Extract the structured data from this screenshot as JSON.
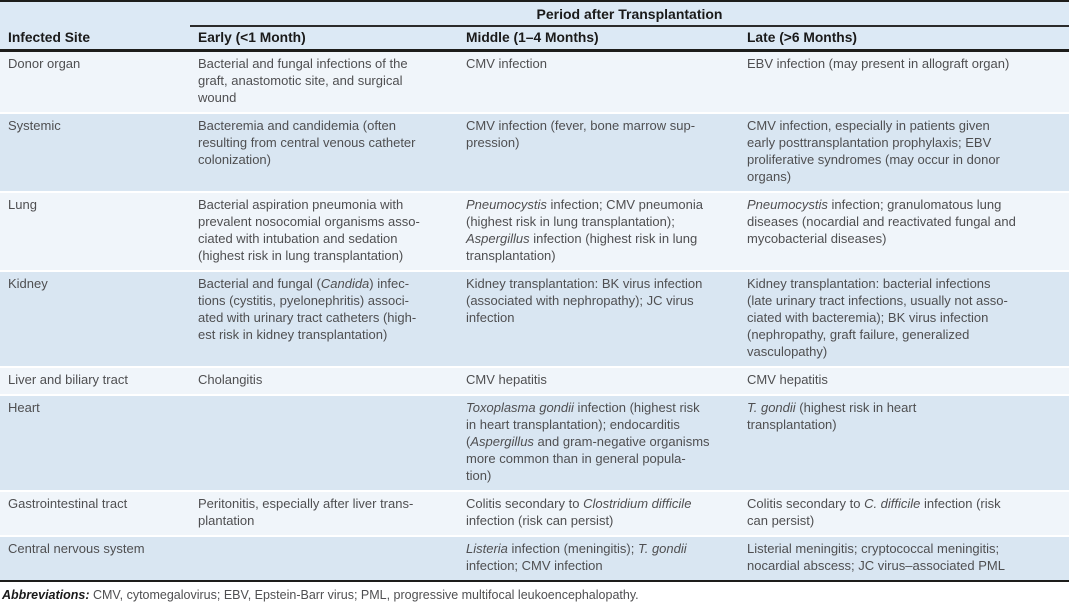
{
  "table": {
    "span_header": "Period after Transplantation",
    "columns": [
      "Infected Site",
      "Early (<1 Month)",
      "Middle (1–4 Months)",
      "Late (>6 Months)"
    ],
    "rows": [
      {
        "site": "Donor organ",
        "early": [
          {
            "t": "Bacterial and fungal infections of the\ngraft, anastomotic site, and surgical\nwound"
          }
        ],
        "middle": [
          {
            "t": "CMV infection"
          }
        ],
        "late": [
          {
            "t": "EBV infection (may present in allograft organ)"
          }
        ]
      },
      {
        "site": "Systemic",
        "early": [
          {
            "t": "Bacteremia and candidemia (often\nresulting from central venous catheter\ncolonization)"
          }
        ],
        "middle": [
          {
            "t": "CMV infection (fever, bone marrow sup-\npression)"
          }
        ],
        "late": [
          {
            "t": "CMV infection, especially in patients given\nearly posttransplantation prophylaxis; EBV\nproliferative syndromes (may occur in donor\norgans)"
          }
        ]
      },
      {
        "site": "Lung",
        "early": [
          {
            "t": "Bacterial aspiration pneumonia with\nprevalent nosocomial organisms asso-\nciated with intubation and sedation\n(highest risk in lung transplantation)"
          }
        ],
        "middle": [
          {
            "t": "Pneumocystis",
            "i": true
          },
          {
            "t": " infection; CMV pneumonia\n(highest risk in lung transplantation);\n"
          },
          {
            "t": "Aspergillus",
            "i": true
          },
          {
            "t": " infection (highest risk in lung\ntransplantation)"
          }
        ],
        "late": [
          {
            "t": "Pneumocystis",
            "i": true
          },
          {
            "t": " infection; granulomatous lung\ndiseases (nocardial and reactivated fungal and\nmycobacterial diseases)"
          }
        ]
      },
      {
        "site": "Kidney",
        "early": [
          {
            "t": "Bacterial and fungal ("
          },
          {
            "t": "Candida",
            "i": true
          },
          {
            "t": ") infec-\ntions (cystitis, pyelonephritis) associ-\nated with urinary tract catheters (high-\nest risk in kidney transplantation)"
          }
        ],
        "middle": [
          {
            "t": "Kidney transplantation: BK virus infection\n(associated with nephropathy); JC virus\ninfection"
          }
        ],
        "late": [
          {
            "t": "Kidney transplantation: bacterial infections\n(late urinary tract infections, usually not asso-\nciated with bacteremia); BK virus infection\n(nephropathy, graft failure, generalized\nvasculopathy)"
          }
        ]
      },
      {
        "site": "Liver and biliary tract",
        "early": [
          {
            "t": "Cholangitis"
          }
        ],
        "middle": [
          {
            "t": "CMV hepatitis"
          }
        ],
        "late": [
          {
            "t": "CMV hepatitis"
          }
        ]
      },
      {
        "site": "Heart",
        "early": [],
        "middle": [
          {
            "t": "Toxoplasma gondii",
            "i": true
          },
          {
            "t": " infection (highest risk\nin heart transplantation); endocarditis\n("
          },
          {
            "t": "Aspergillus",
            "i": true
          },
          {
            "t": " and gram-negative organisms\nmore common than in general popula-\ntion)"
          }
        ],
        "late": [
          {
            "t": "T. gondii",
            "i": true
          },
          {
            "t": " (highest risk in heart\ntransplantation)"
          }
        ]
      },
      {
        "site": "Gastrointestinal tract",
        "early": [
          {
            "t": "Peritonitis, especially after liver trans-\nplantation"
          }
        ],
        "middle": [
          {
            "t": "Colitis secondary to "
          },
          {
            "t": "Clostridium difficile",
            "i": true
          },
          {
            "t": "\ninfection (risk can persist)"
          }
        ],
        "late": [
          {
            "t": "Colitis secondary to "
          },
          {
            "t": "C. difficile",
            "i": true
          },
          {
            "t": " infection (risk\ncan persist)"
          }
        ]
      },
      {
        "site": "Central nervous system",
        "early": [],
        "middle": [
          {
            "t": "Listeria",
            "i": true
          },
          {
            "t": " infection (meningitis); "
          },
          {
            "t": "T. gondii",
            "i": true
          },
          {
            "t": "\ninfection; CMV infection"
          }
        ],
        "late": [
          {
            "t": "Listerial meningitis; cryptococcal meningitis;\nnocardial abscess; JC virus–associated PML"
          }
        ]
      }
    ],
    "footnote_label": "Abbreviations:",
    "footnote_text": " CMV, cytomegalovirus; EBV, Epstein-Barr virus; PML, progressive multifocal leukoencephalopathy."
  },
  "colors": {
    "header_band": "#dce9f5",
    "row_light": "#f0f5fa",
    "row_shaded": "#d9e6f2",
    "rule_dark": "#1d1d1b",
    "body_text": "#4f4f51",
    "header_text": "#1a1a1a"
  }
}
